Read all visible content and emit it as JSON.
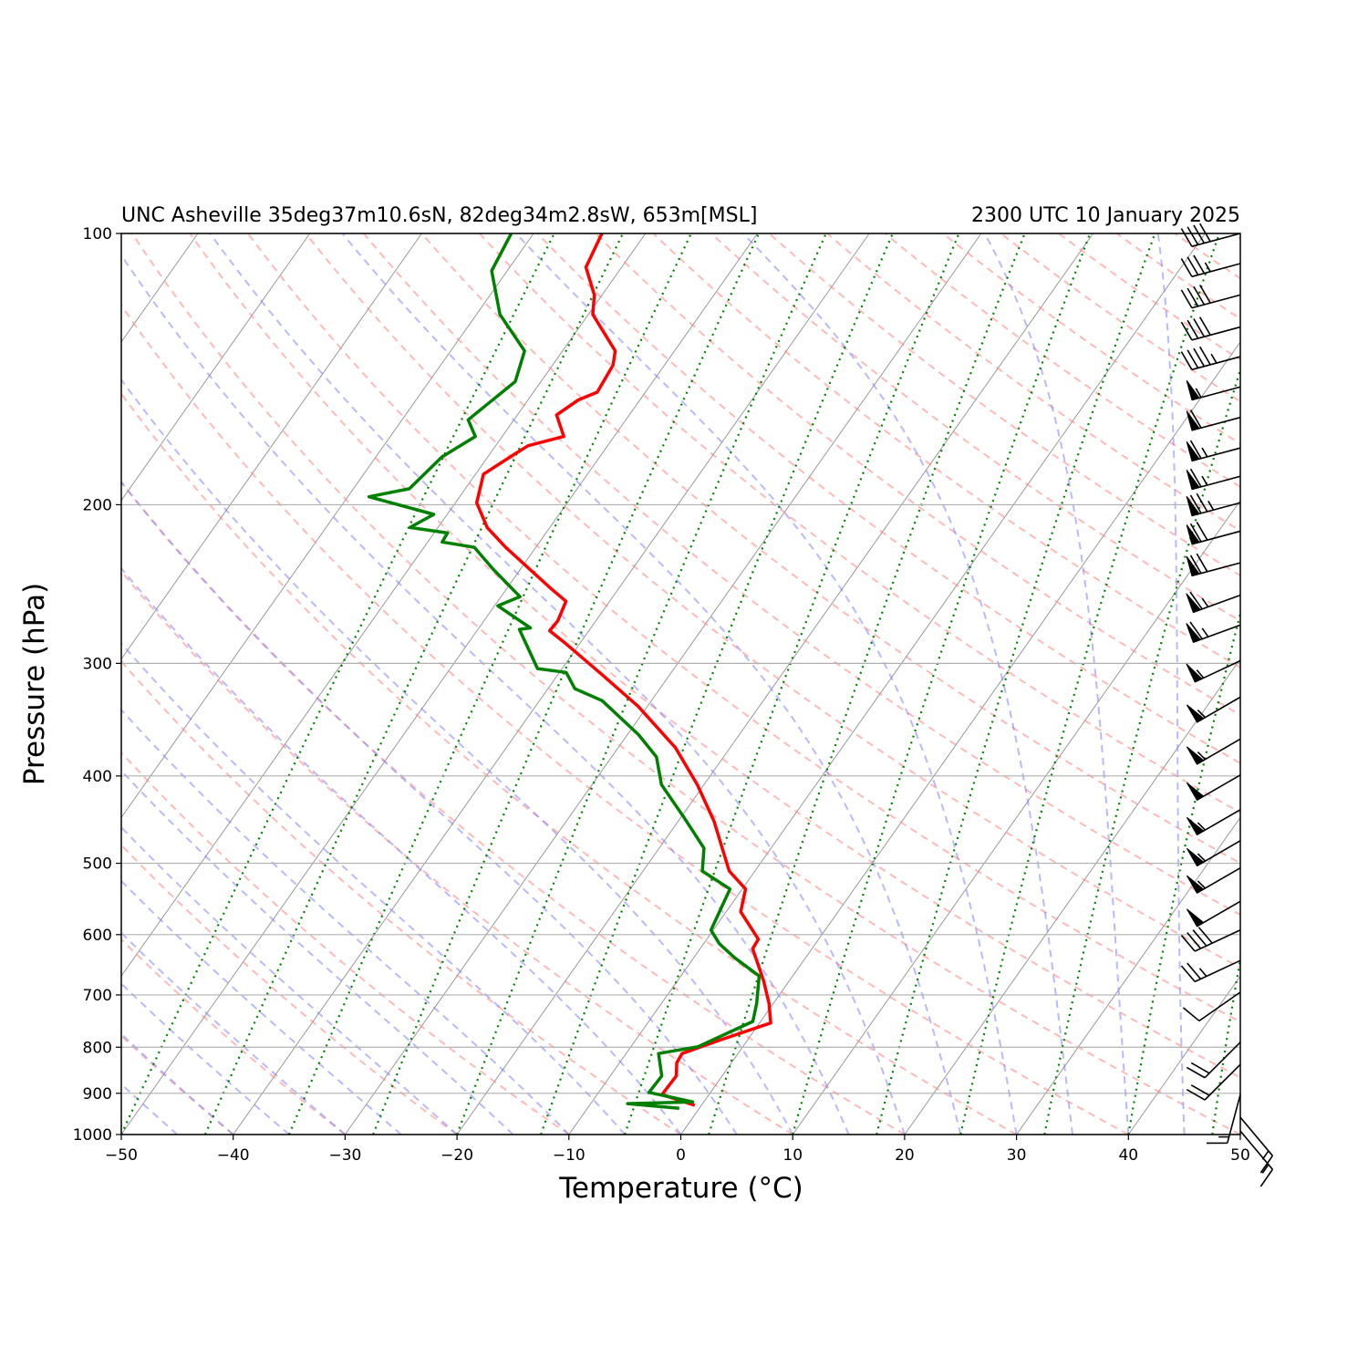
{
  "chart_data": {
    "type": "skewt",
    "title_left": "UNC Asheville 35deg37m10.6sN, 82deg34m2.8sW, 653m[MSL]",
    "title_right": "2300 UTC 10 January 2025",
    "xlabel": "Temperature (°C)",
    "ylabel": "Pressure (hPa)",
    "xlim": [
      -50,
      50
    ],
    "ylim": [
      1000,
      100
    ],
    "log_y": true,
    "grid": true,
    "xticks": [
      {
        "value": -50,
        "label": "−50"
      },
      {
        "value": -40,
        "label": "−40"
      },
      {
        "value": -30,
        "label": "−30"
      },
      {
        "value": -20,
        "label": "−20"
      },
      {
        "value": -10,
        "label": "−10"
      },
      0,
      10,
      20,
      30,
      40,
      50
    ],
    "yticks": [
      100,
      200,
      300,
      400,
      500,
      600,
      700,
      800,
      900,
      1000
    ],
    "series": [
      {
        "color": "#ff0000",
        "pressure": [
          928,
          903,
          861,
          832,
          813,
          785,
          752,
          715,
          675,
          622,
          607,
          566,
          534,
          510,
          449,
          409,
          372,
          335,
          309,
          285,
          276,
          269,
          256,
          248,
          223,
          212,
          199,
          185,
          177,
          172,
          168,
          159,
          153,
          150,
          140,
          135,
          123,
          117,
          109,
          100
        ],
        "values": [
          -0.6,
          -4.2,
          -4.1,
          -4.9,
          -5.0,
          -2.4,
          1.0,
          -0.4,
          -2.3,
          -5.3,
          -5.4,
          -8.7,
          -9.7,
          -12.3,
          -16.8,
          -20.6,
          -24.9,
          -30.8,
          -36.0,
          -41.3,
          -43.5,
          -43.4,
          -43.9,
          -46.0,
          -52.7,
          -55.6,
          -58.1,
          -59.3,
          -58.0,
          -57.1,
          -54.5,
          -56.5,
          -55.5,
          -54.3,
          -54.6,
          -55.3,
          -59.6,
          -60.7,
          -63.2,
          -63.9
        ]
      },
      {
        "color": "#008000",
        "pressure": [
          935,
          924,
          920,
          898,
          861,
          813,
          799,
          749,
          715,
          667,
          636,
          614,
          593,
          534,
          510,
          481,
          444,
          409,
          381,
          360,
          330,
          320,
          307,
          304,
          275,
          274,
          259,
          253,
          236,
          223,
          220,
          215,
          212,
          205,
          196,
          192,
          177,
          168,
          161,
          146,
          135,
          123,
          110,
          100
        ],
        "values": [
          -1.8,
          -6.7,
          -1.0,
          -5.5,
          -5.4,
          -7.1,
          -4.0,
          -0.7,
          -1.5,
          -3.0,
          -6.4,
          -8.6,
          -10.2,
          -11.1,
          -14.7,
          -16.0,
          -19.8,
          -23.8,
          -26.0,
          -29.0,
          -34.4,
          -37.6,
          -39.4,
          -42.2,
          -46.3,
          -45.4,
          -49.7,
          -48.3,
          -52.4,
          -55.5,
          -58.7,
          -58.8,
          -62.5,
          -61.2,
          -68.1,
          -65.0,
          -64.1,
          -62.4,
          -64.1,
          -62.3,
          -63.4,
          -67.9,
          -71.4,
          -72.0
        ]
      }
    ],
    "wind": {
      "color": "#000000",
      "pressure": [
        100,
        108,
        117,
        127,
        137,
        148,
        160,
        173,
        186,
        199,
        214,
        232,
        252,
        272,
        298,
        327,
        364,
        399,
        436,
        472,
        506,
        551,
        593,
        641,
        695,
        790,
        836,
        903,
        957,
        991
      ],
      "speed": [
        40,
        35,
        40,
        40,
        45,
        55,
        60,
        65,
        65,
        75,
        70,
        70,
        65,
        65,
        55,
        55,
        55,
        50,
        55,
        55,
        55,
        50,
        40,
        25,
        10,
        20,
        20,
        15,
        15,
        15
      ],
      "direction": [
        255,
        255,
        255,
        255,
        255,
        255,
        255,
        255,
        255,
        255,
        255,
        255,
        250,
        250,
        245,
        240,
        240,
        240,
        240,
        240,
        240,
        240,
        245,
        245,
        235,
        225,
        225,
        195,
        140,
        140
      ]
    }
  }
}
